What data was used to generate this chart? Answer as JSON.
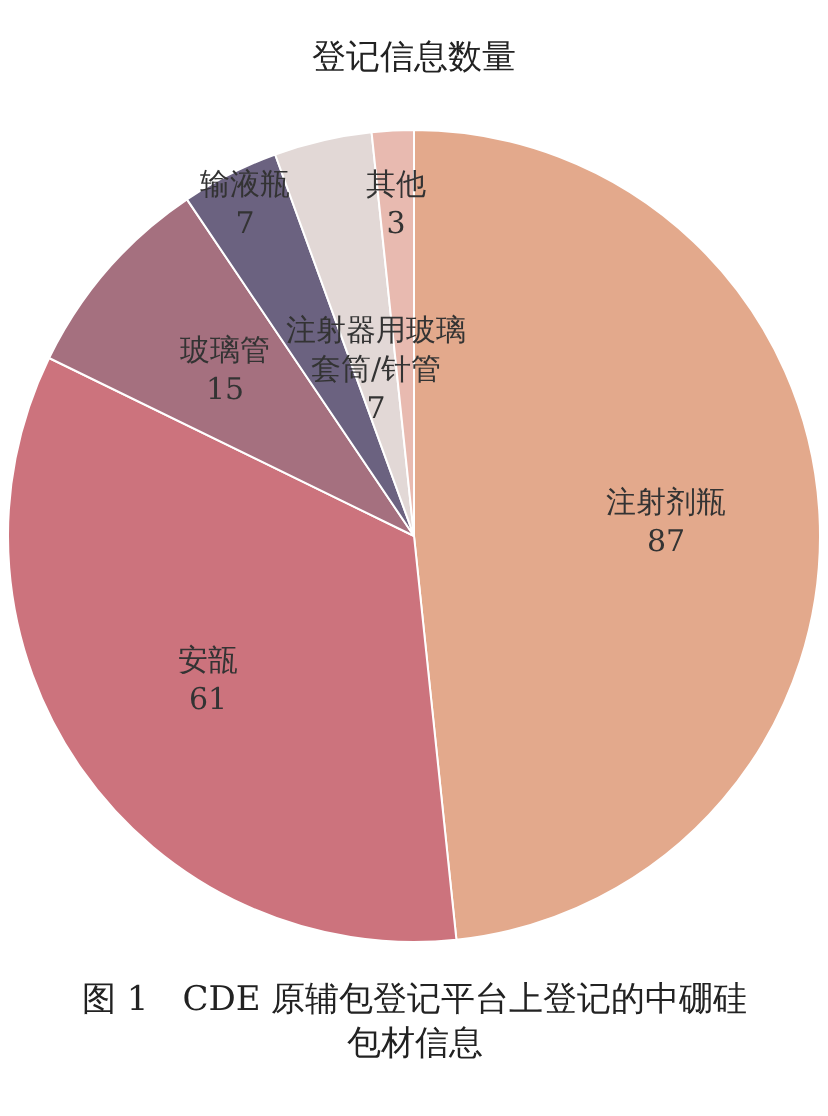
{
  "chart_data": {
    "type": "pie",
    "title": "登记信息数量",
    "categories": [
      "注射剂瓶",
      "安瓿",
      "玻璃管",
      "输液瓶",
      "注射器用玻璃套筒/针管",
      "其他"
    ],
    "values": [
      87,
      61,
      15,
      7,
      7,
      3
    ],
    "colors": [
      "#e3a98c",
      "#cc737d",
      "#a5707f",
      "#6b6280",
      "#e2d8d6",
      "#e8bab0"
    ],
    "data_labels": true,
    "annotations": [
      "图 1　CDE 原辅包登记平台上登记的中硼硅包材信息"
    ]
  }
}
